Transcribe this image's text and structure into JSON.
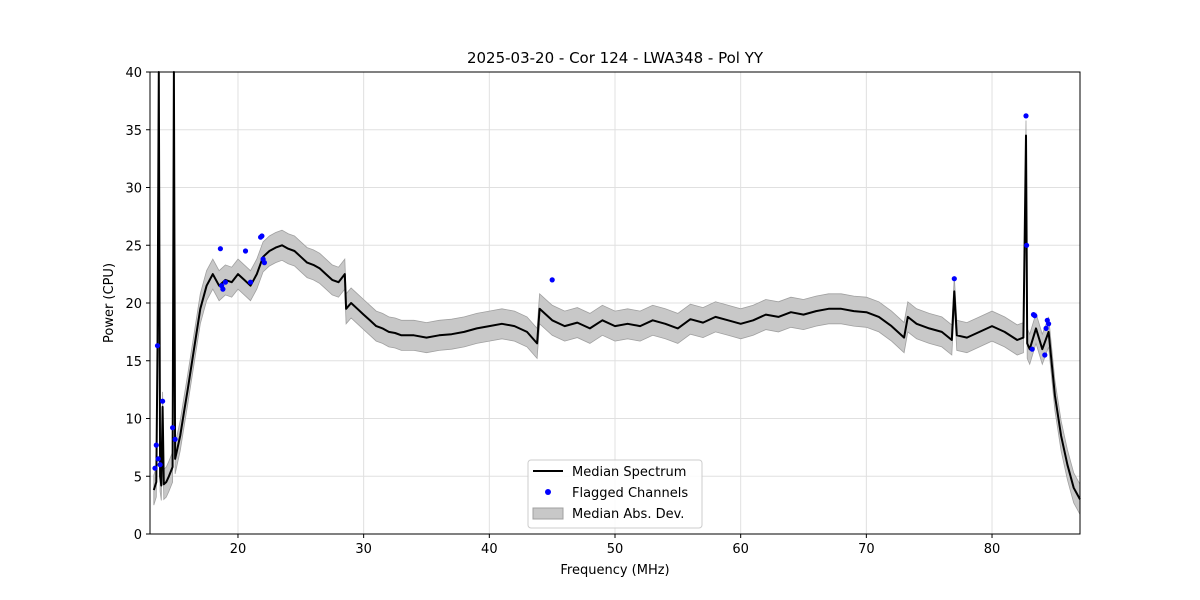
{
  "chart_data": {
    "type": "line",
    "title": "2025-03-20 - Cor 124 - LWA348 - Pol YY",
    "xlabel": "Frequency (MHz)",
    "ylabel": "Power (CPU)",
    "xlim": [
      13.0,
      87.0
    ],
    "ylim": [
      0,
      40
    ],
    "grid": true,
    "x_ticks": [
      20,
      30,
      40,
      50,
      60,
      70,
      80
    ],
    "y_ticks": [
      0,
      5,
      10,
      15,
      20,
      25,
      30,
      35,
      40
    ],
    "legend_position": "bottom-center",
    "legend": {
      "median": "Median Spectrum",
      "flagged": "Flagged Channels",
      "mad": "Median Abs. Dev."
    },
    "colors": {
      "median": "#000000",
      "flagged": "#0000ff",
      "mad": "#c8c8c8",
      "mad_edge": "#a0a0a0",
      "grid": "#e0e0e0"
    },
    "series": [
      {
        "name": "Median Spectrum",
        "x": [
          13.3,
          13.5,
          13.6,
          13.7,
          13.8,
          13.9,
          14.0,
          14.1,
          14.3,
          14.5,
          14.8,
          14.9,
          15.0,
          15.1,
          15.4,
          15.7,
          16.0,
          16.5,
          17.0,
          17.5,
          18.0,
          18.5,
          19.0,
          19.5,
          20.0,
          20.5,
          21.0,
          21.5,
          22.0,
          22.5,
          23.0,
          23.5,
          24.0,
          24.5,
          25.0,
          25.5,
          26.0,
          26.5,
          27.0,
          27.5,
          28.0,
          28.5,
          28.6,
          29.0,
          29.5,
          30.0,
          30.5,
          31.0,
          31.5,
          32.0,
          32.5,
          33.0,
          34.0,
          35.0,
          36.0,
          37.0,
          38.0,
          39.0,
          40.0,
          41.0,
          42.0,
          43.0,
          43.8,
          44.0,
          45.0,
          46.0,
          47.0,
          48.0,
          49.0,
          50.0,
          51.0,
          52.0,
          53.0,
          54.0,
          55.0,
          56.0,
          57.0,
          58.0,
          59.0,
          60.0,
          61.0,
          62.0,
          63.0,
          64.0,
          65.0,
          66.0,
          67.0,
          68.0,
          69.0,
          70.0,
          71.0,
          72.0,
          73.0,
          73.3,
          74.0,
          75.0,
          76.0,
          76.8,
          77.0,
          77.2,
          78.0,
          79.0,
          80.0,
          81.0,
          82.0,
          82.5,
          82.7,
          82.8,
          83.0,
          83.5,
          84.0,
          84.5,
          85.0,
          85.5,
          86.0,
          86.5,
          87.0
        ],
        "values": [
          3.8,
          4.5,
          16.0,
          40.0,
          5.0,
          4.2,
          11.0,
          4.3,
          4.5,
          5.0,
          5.8,
          40.0,
          6.5,
          7.0,
          8.5,
          10.5,
          12.5,
          16.0,
          19.5,
          21.5,
          22.5,
          21.5,
          22.0,
          21.8,
          22.5,
          22.0,
          21.5,
          22.5,
          24.0,
          24.5,
          24.8,
          25.0,
          24.7,
          24.5,
          24.0,
          23.5,
          23.3,
          23.0,
          22.5,
          22.0,
          21.8,
          22.5,
          19.5,
          20.0,
          19.5,
          19.0,
          18.5,
          18.0,
          17.8,
          17.5,
          17.4,
          17.2,
          17.2,
          17.0,
          17.2,
          17.3,
          17.5,
          17.8,
          18.0,
          18.2,
          18.0,
          17.5,
          16.5,
          19.5,
          18.5,
          18.0,
          18.3,
          17.8,
          18.5,
          18.0,
          18.2,
          18.0,
          18.5,
          18.2,
          17.8,
          18.6,
          18.3,
          18.8,
          18.5,
          18.2,
          18.5,
          19.0,
          18.8,
          19.2,
          19.0,
          19.3,
          19.5,
          19.5,
          19.3,
          19.2,
          18.8,
          18.0,
          17.0,
          18.8,
          18.2,
          17.8,
          17.5,
          16.8,
          21.0,
          17.2,
          17.0,
          17.5,
          18.0,
          17.5,
          16.8,
          17.0,
          34.5,
          16.5,
          16.0,
          17.8,
          16.0,
          17.5,
          12.0,
          8.5,
          6.0,
          4.0,
          3.0
        ]
      }
    ],
    "mad_half_width": 1.3,
    "flagged_channels": {
      "x": [
        13.4,
        13.5,
        13.6,
        13.65,
        13.8,
        14.0,
        14.8,
        15.0,
        18.6,
        18.7,
        18.8,
        19.0,
        20.6,
        21.0,
        21.8,
        21.9,
        22.0,
        22.1,
        45.0,
        77.0,
        82.7,
        82.75,
        83.2,
        83.3,
        83.4,
        84.2,
        84.3,
        84.4,
        84.5
      ],
      "values": [
        5.7,
        7.7,
        16.3,
        6.5,
        6.0,
        11.5,
        9.2,
        8.2,
        24.7,
        21.5,
        21.2,
        21.8,
        24.5,
        21.8,
        25.7,
        25.8,
        23.8,
        23.5,
        22.0,
        22.1,
        36.2,
        25.0,
        16.0,
        19.0,
        18.9,
        15.5,
        17.8,
        18.5,
        18.2
      ]
    }
  }
}
